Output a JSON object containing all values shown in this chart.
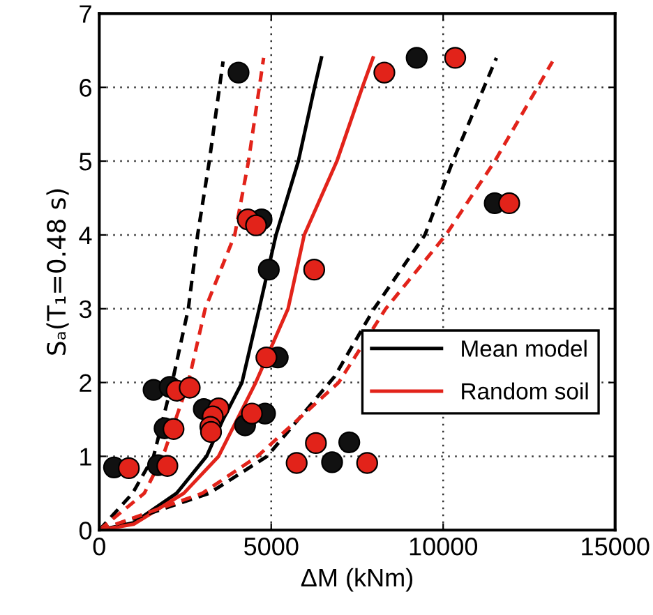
{
  "chart_data": {
    "type": "scatter",
    "xlabel": "ΔM (kNm)",
    "ylabel": "Sₐ(T₁=0.48 s)",
    "xlim": [
      0,
      15000
    ],
    "ylim": [
      0,
      7
    ],
    "xticks": [
      0,
      5000,
      10000,
      15000
    ],
    "yticks": [
      0,
      1,
      2,
      3,
      4,
      5,
      6,
      7
    ],
    "grid": true,
    "legend": "lower right",
    "marker": "circle",
    "series": [
      {
        "type": "line",
        "name": "Mean model",
        "color": "#000000",
        "line_style": "solid",
        "marker": "none",
        "x": [
          0,
          1000,
          2250,
          3120,
          3600,
          4150,
          4650,
          5140,
          5790,
          6260,
          6460
        ],
        "values": [
          0,
          0.1,
          0.5,
          1,
          1.5,
          2,
          3,
          4,
          5,
          6,
          6.4
        ]
      },
      {
        "type": "line",
        "name": "Random soil",
        "color": "#e2231a",
        "line_style": "solid",
        "marker": "none",
        "x": [
          0,
          1000,
          2460,
          3470,
          4550,
          5490,
          5960,
          6910,
          7650,
          7960
        ],
        "values": [
          0,
          0.08,
          0.5,
          1,
          2,
          3,
          4,
          5,
          6,
          6.4
        ]
      },
      {
        "type": "line",
        "color": "#000000",
        "line_style": "dashed",
        "marker": "none",
        "x": [
          0,
          970,
          1580,
          2120,
          2590,
          2860,
          3200,
          3600
        ],
        "values": [
          0,
          0.5,
          1,
          2,
          3,
          4,
          5,
          6.35
        ]
      },
      {
        "type": "line",
        "color": "#e2231a",
        "line_style": "dashed",
        "marker": "none",
        "x": [
          0,
          1310,
          1850,
          2590,
          3080,
          3940,
          4340,
          4780
        ],
        "values": [
          0,
          0.5,
          1,
          2,
          3,
          4,
          5,
          6.4
        ]
      },
      {
        "type": "line",
        "color": "#000000",
        "line_style": "dashed",
        "marker": "none",
        "x": [
          0,
          1300,
          3200,
          4880,
          6840,
          7990,
          9470,
          10280,
          11550
        ],
        "values": [
          0,
          0.2,
          0.5,
          1,
          2.08,
          3,
          4,
          5,
          6.4
        ]
      },
      {
        "type": "line",
        "color": "#e2231a",
        "line_style": "dashed",
        "marker": "none",
        "x": [
          0,
          1200,
          3000,
          4600,
          6960,
          8330,
          10080,
          11500,
          13180
        ],
        "values": [
          0,
          0.2,
          0.5,
          1,
          2,
          3,
          4,
          5,
          6.35
        ]
      },
      {
        "color": "#111111",
        "x": [
          4050,
          9230,
          11500,
          4720,
          4930,
          1580,
          2050,
          430,
          1710,
          1900,
          3040,
          3400,
          4240,
          4820,
          5190,
          6770,
          7270
        ],
        "values": [
          6.2,
          6.4,
          4.43,
          4.21,
          3.53,
          1.9,
          1.94,
          0.85,
          0.88,
          1.38,
          1.64,
          null,
          1.42,
          1.58,
          2.34,
          0.92,
          1.19
        ]
      },
      {
        "color": "#e2231a",
        "x": [
          10350,
          8290,
          11920,
          4320,
          4560,
          6250,
          2250,
          2630,
          860,
          1980,
          2160,
          3470,
          3300,
          3230,
          3250,
          4440,
          4860,
          5740,
          6300,
          7790
        ],
        "values": [
          6.4,
          6.2,
          4.43,
          4.21,
          4.13,
          3.53,
          1.89,
          1.93,
          0.84,
          0.87,
          1.37,
          1.65,
          1.54,
          1.4,
          1.33,
          1.58,
          2.34,
          0.91,
          1.18,
          0.91
        ]
      }
    ]
  }
}
